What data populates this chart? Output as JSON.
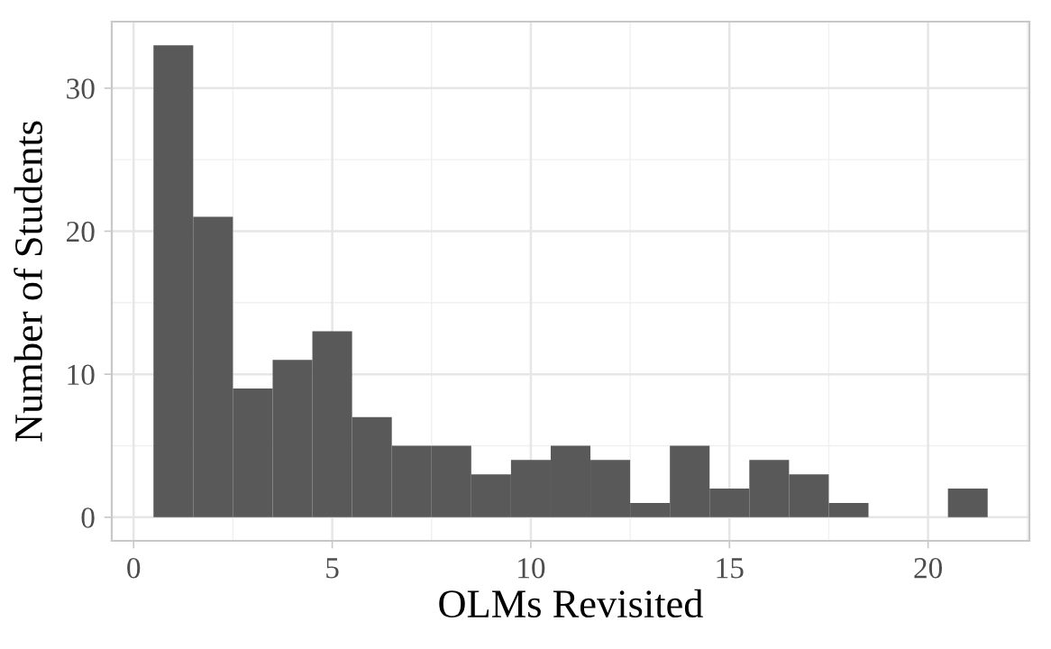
{
  "chart_data": {
    "type": "histogram",
    "xlabel": "OLMs Revisited",
    "ylabel": "Number of Students",
    "bins": [
      0.5,
      1.5,
      2.5,
      3.5,
      4.5,
      5.5,
      6.5,
      7.5,
      8.5,
      9.5,
      10.5,
      11.5,
      12.5,
      13.5,
      14.5,
      15.5,
      16.5,
      17.5,
      18.5,
      19.5,
      20.5,
      21.5
    ],
    "values": [
      33,
      21,
      9,
      11,
      13,
      7,
      5,
      5,
      3,
      4,
      5,
      4,
      1,
      5,
      2,
      4,
      3,
      1,
      0,
      0,
      2
    ],
    "color": "#595959",
    "xlim": [
      -0.55,
      22.55
    ],
    "ylim": [
      -1.65,
      34.65
    ],
    "xticks": [
      0,
      5,
      10,
      15,
      20
    ],
    "yticks": [
      0,
      10,
      20,
      30
    ],
    "grid": true
  }
}
